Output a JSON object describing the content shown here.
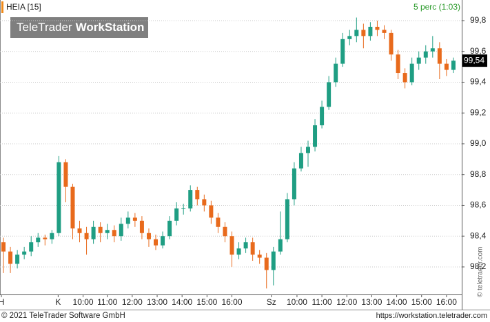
{
  "chart_data": {
    "type": "candlestick",
    "title": "HEIA [15]",
    "subtitle": "5 perc (1:03)",
    "watermark": [
      "TeleTrader",
      "WorkStation"
    ],
    "footer_left": "© 2021 TeleTrader Software GmbH",
    "footer_right": "https://workstation.teletrader.com",
    "side_note": "© teletrader.com",
    "up_color": "#1f9e83",
    "down_color": "#e86a1c",
    "open": [
      98.36,
      98.3,
      98.22,
      98.28,
      98.3,
      98.36,
      98.39,
      98.38,
      98.42,
      98.88,
      98.72,
      98.45,
      98.42,
      98.38,
      98.46,
      98.42,
      98.44,
      98.4,
      98.48,
      98.52,
      98.5,
      98.42,
      98.38,
      98.34,
      98.4,
      98.5,
      98.58,
      98.58,
      98.7,
      98.64,
      98.6,
      98.52,
      98.46,
      98.4,
      98.28,
      98.32,
      98.36,
      98.28,
      98.26,
      98.18,
      98.3,
      98.38,
      98.64,
      98.84,
      98.94,
      98.98,
      99.12,
      99.24,
      99.4,
      99.52,
      99.68,
      99.7,
      99.74,
      99.7,
      99.76,
      99.74,
      99.72,
      99.58,
      99.46,
      99.4,
      99.52,
      99.56,
      99.6,
      99.62,
      99.52,
      99.48
    ],
    "high": [
      98.39,
      98.33,
      98.31,
      98.33,
      98.4,
      98.42,
      98.41,
      98.44,
      98.92,
      98.9,
      98.74,
      98.5,
      98.46,
      98.5,
      98.49,
      98.48,
      98.47,
      98.52,
      98.56,
      98.55,
      98.53,
      98.45,
      98.41,
      98.43,
      98.53,
      98.62,
      98.61,
      98.73,
      98.72,
      98.67,
      98.63,
      98.55,
      98.49,
      98.43,
      98.36,
      98.39,
      98.39,
      98.31,
      98.29,
      98.33,
      98.56,
      98.68,
      98.88,
      98.98,
      99.02,
      99.16,
      99.28,
      99.44,
      99.56,
      99.72,
      99.74,
      99.82,
      99.78,
      99.79,
      99.8,
      99.77,
      99.74,
      99.61,
      99.49,
      99.56,
      99.6,
      99.64,
      99.7,
      99.66,
      99.55,
      99.56
    ],
    "low": [
      98.16,
      98.16,
      98.19,
      98.25,
      98.27,
      98.33,
      98.34,
      98.35,
      98.4,
      98.62,
      98.38,
      98.36,
      98.28,
      98.35,
      98.36,
      98.38,
      98.36,
      98.37,
      98.45,
      98.46,
      98.38,
      98.33,
      98.31,
      98.32,
      98.38,
      98.47,
      98.54,
      98.56,
      98.6,
      98.56,
      98.48,
      98.42,
      98.36,
      98.2,
      98.25,
      98.29,
      98.24,
      98.22,
      98.06,
      98.08,
      98.28,
      98.36,
      98.6,
      98.82,
      98.85,
      98.95,
      99.1,
      99.22,
      99.37,
      99.5,
      99.64,
      99.66,
      99.62,
      99.67,
      99.7,
      99.68,
      99.54,
      99.42,
      99.36,
      99.38,
      99.48,
      99.52,
      99.56,
      99.42,
      99.44,
      99.46
    ],
    "close": [
      98.3,
      98.22,
      98.28,
      98.3,
      98.36,
      98.39,
      98.38,
      98.42,
      98.88,
      98.72,
      98.45,
      98.42,
      98.38,
      98.46,
      98.42,
      98.44,
      98.4,
      98.48,
      98.52,
      98.5,
      98.42,
      98.38,
      98.34,
      98.4,
      98.5,
      98.58,
      98.58,
      98.7,
      98.64,
      98.6,
      98.52,
      98.46,
      98.4,
      98.28,
      98.32,
      98.36,
      98.28,
      98.26,
      98.18,
      98.3,
      98.38,
      98.64,
      98.84,
      98.94,
      98.98,
      99.12,
      99.24,
      99.4,
      99.52,
      99.68,
      99.7,
      99.74,
      99.7,
      99.76,
      99.74,
      99.72,
      99.58,
      99.46,
      99.4,
      99.52,
      99.56,
      99.6,
      99.62,
      99.52,
      99.48,
      99.54
    ],
    "last_price": {
      "value": 99.54,
      "label": "99,54"
    },
    "xlim": [
      -0.5,
      66.2
    ],
    "xticks": [
      {
        "value": -0.3,
        "label": "H"
      },
      {
        "value": 7.9,
        "label": "K"
      },
      {
        "value": 11.5,
        "label": "10:00"
      },
      {
        "value": 15,
        "label": "11:00"
      },
      {
        "value": 18.6,
        "label": "12:00"
      },
      {
        "value": 22.2,
        "label": "13:00"
      },
      {
        "value": 25.8,
        "label": "14:00"
      },
      {
        "value": 29.4,
        "label": "15:00"
      },
      {
        "value": 33,
        "label": "16:00"
      },
      {
        "value": 38.7,
        "label": "Sz"
      },
      {
        "value": 42.4,
        "label": "10:00"
      },
      {
        "value": 46,
        "label": "11:00"
      },
      {
        "value": 49.6,
        "label": "12:00"
      },
      {
        "value": 53.2,
        "label": "13:00"
      },
      {
        "value": 56.8,
        "label": "14:00"
      },
      {
        "value": 60.4,
        "label": "15:00"
      },
      {
        "value": 64,
        "label": "16:00"
      }
    ],
    "ylim": [
      98.021,
      99.934
    ],
    "yticks": [
      {
        "value": 98.2,
        "label": "98,2"
      },
      {
        "value": 98.4,
        "label": "98,4"
      },
      {
        "value": 98.6,
        "label": "98,6"
      },
      {
        "value": 98.8,
        "label": "98,8"
      },
      {
        "value": 99.0,
        "label": "99,0"
      },
      {
        "value": 99.2,
        "label": "99,2"
      },
      {
        "value": 99.4,
        "label": "99,4"
      },
      {
        "value": 99.6,
        "label": "99,6"
      },
      {
        "value": 99.8,
        "label": "99,8"
      }
    ],
    "grid": true
  }
}
